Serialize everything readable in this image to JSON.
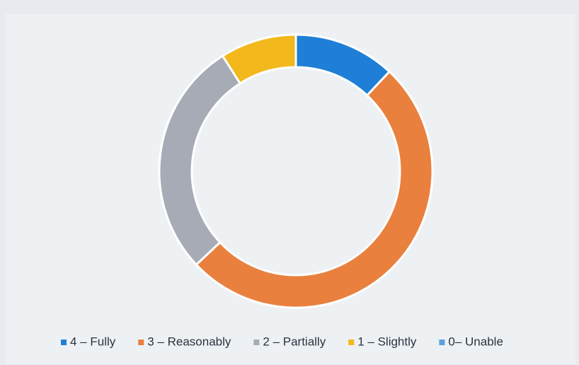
{
  "chart_data": {
    "type": "donut",
    "categories": [
      "4 – Fully",
      "3 – Reasonably",
      "2 – Partially",
      "1 – Slightly",
      "0– Unable"
    ],
    "values": [
      12,
      51,
      28,
      9,
      0
    ],
    "colors": [
      "#1f7fd6",
      "#e9803e",
      "#a6abb5",
      "#f2b81c",
      "#5aa0e0"
    ],
    "legend": "bottom"
  }
}
